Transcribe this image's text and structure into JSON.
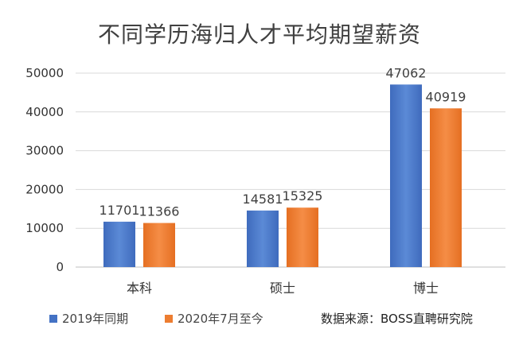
{
  "chart_data": {
    "type": "bar",
    "title": "不同学历海归人才平均期望薪资",
    "categories": [
      "本科",
      "硕士",
      "博士"
    ],
    "series": [
      {
        "name": "2019年同期",
        "values": [
          11701,
          14581,
          47062
        ],
        "color": "#4472C4"
      },
      {
        "name": "2020年7月至今",
        "values": [
          11366,
          15325,
          40919
        ],
        "color": "#ED7D31"
      }
    ],
    "ylim": [
      0,
      50000
    ],
    "yticks": [
      0,
      10000,
      20000,
      30000,
      40000,
      50000
    ],
    "grid": true,
    "legend_position": "bottom-left",
    "data_labels": true
  },
  "source_note": "数据来源：BOSS直聘研究院"
}
